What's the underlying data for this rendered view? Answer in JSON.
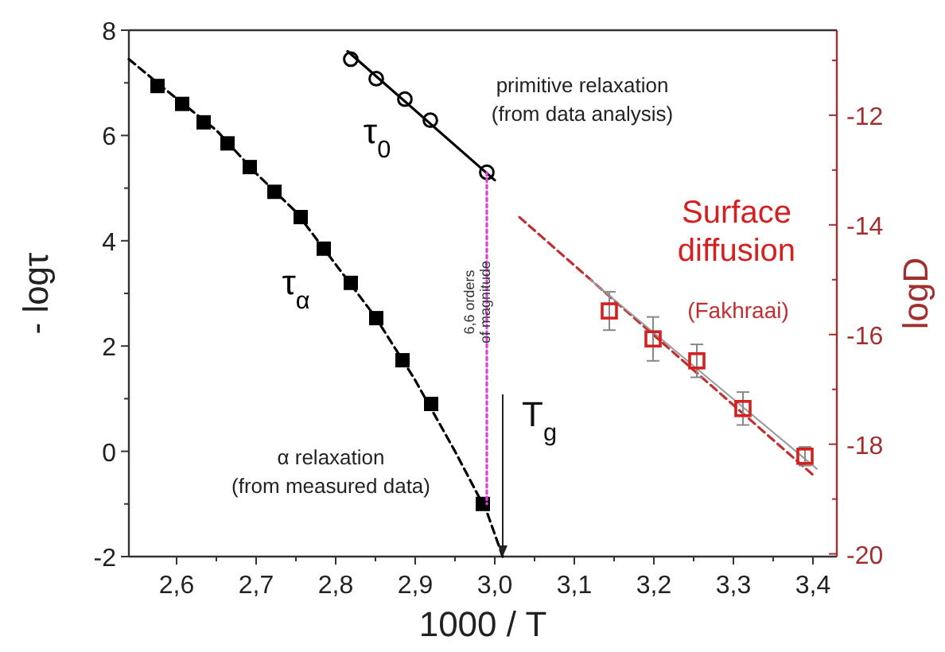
{
  "chart_data": {
    "type": "scatter",
    "xlabel": "1000 / T",
    "ylabel": "- logτ",
    "y2label": "logD",
    "xlim": [
      2.54,
      3.43
    ],
    "ylim": [
      -2,
      8
    ],
    "y2lim": [
      -20.05,
      -10.45
    ],
    "xticks": [
      {
        "value": 2.6,
        "label": "2,6"
      },
      {
        "value": 2.65,
        "label": null
      },
      {
        "value": 2.7,
        "label": "2,7"
      },
      {
        "value": 2.75,
        "label": null
      },
      {
        "value": 2.8,
        "label": "2,8"
      },
      {
        "value": 2.85,
        "label": null
      },
      {
        "value": 2.9,
        "label": "2,9"
      },
      {
        "value": 2.95,
        "label": null
      },
      {
        "value": 3.0,
        "label": "3,0"
      },
      {
        "value": 3.05,
        "label": null
      },
      {
        "value": 3.1,
        "label": "3,1"
      },
      {
        "value": 3.15,
        "label": null
      },
      {
        "value": 3.2,
        "label": "3,2"
      },
      {
        "value": 3.25,
        "label": null
      },
      {
        "value": 3.3,
        "label": "3,3"
      },
      {
        "value": 3.35,
        "label": null
      },
      {
        "value": 3.4,
        "label": "3,4"
      }
    ],
    "yticks": [
      -2,
      {
        "value": -1,
        "label": null
      },
      0,
      {
        "value": 1,
        "label": null
      },
      2,
      {
        "value": 3,
        "label": null
      },
      4,
      {
        "value": 5,
        "label": null
      },
      6,
      {
        "value": 7,
        "label": null
      },
      8
    ],
    "y2ticks": [
      -20,
      {
        "value": -19,
        "label": null
      },
      -18,
      {
        "value": -17,
        "label": null
      },
      -16,
      {
        "value": -15,
        "label": null
      },
      -14,
      {
        "value": -13,
        "label": null
      },
      -12,
      {
        "value": -11,
        "label": null
      }
    ],
    "grid": false,
    "series": [
      {
        "type": "line",
        "color": "#000000",
        "line_style": "dashed",
        "x": [
          2.54,
          2.6,
          2.65,
          2.7,
          2.75,
          2.8,
          2.85,
          2.9,
          2.95,
          2.99,
          3.01
        ],
        "values": [
          7.45,
          6.7,
          6.1,
          5.28,
          4.55,
          3.55,
          2.55,
          1.35,
          0.0,
          -1.15,
          -2
        ]
      },
      {
        "name": "τ$_{α}$",
        "color": "#000000",
        "marker": "square",
        "x": [
          2.576,
          2.607,
          2.634,
          2.664,
          2.692,
          2.723,
          2.756,
          2.785,
          2.819,
          2.851,
          2.884,
          2.92,
          2.985
        ],
        "values": [
          6.94,
          6.6,
          6.25,
          5.85,
          5.4,
          4.93,
          4.45,
          3.85,
          3.2,
          2.53,
          1.73,
          0.9,
          -1.0
        ]
      },
      {
        "type": "line",
        "color": "#000000",
        "line_style": "solid",
        "x": [
          2.815,
          3.0
        ],
        "values": [
          7.6,
          5.15
        ]
      },
      {
        "name": "τ$_{0}$",
        "color": "#000000",
        "marker": "circle",
        "x": [
          2.819,
          2.851,
          2.887,
          2.919,
          2.99
        ],
        "values": [
          7.45,
          7.08,
          6.69,
          6.29,
          5.3
        ]
      },
      {
        "type": "line",
        "color": "#e040e0",
        "line_style": "dotted",
        "x": [
          2.99,
          2.99
        ],
        "values": [
          5.3,
          -1.0
        ]
      },
      {
        "type": "line",
        "color": "#c03030",
        "line_style": "dashed",
        "axis": "y2",
        "x": [
          3.031,
          3.4
        ],
        "values": [
          -13.86,
          -18.56
        ]
      },
      {
        "type": "line",
        "color": "#999999",
        "line_style": "solid",
        "axis": "y2",
        "x": [
          3.12,
          3.405
        ],
        "values": [
          -15.0,
          -18.45
        ]
      },
      {
        "name": "Surface diffusion",
        "color": "#d42020",
        "marker": "square",
        "axis": "y2",
        "x": [
          3.144,
          3.199,
          3.254,
          3.312,
          3.39
        ],
        "values": [
          -15.57,
          -16.08,
          -16.48,
          -17.35,
          -18.22
        ],
        "errors": [
          0.35,
          0.4,
          0.3,
          0.3,
          0.17
        ]
      }
    ],
    "annotations": [
      "primitive relaxation",
      "(from data analysis)",
      "6,6 orders of magnitude",
      "α relaxation",
      "(from measured data)",
      "(Fakhraai)",
      {
        "text": "T$_{g}$",
        "x": 3.01,
        "y": -2
      }
    ]
  }
}
